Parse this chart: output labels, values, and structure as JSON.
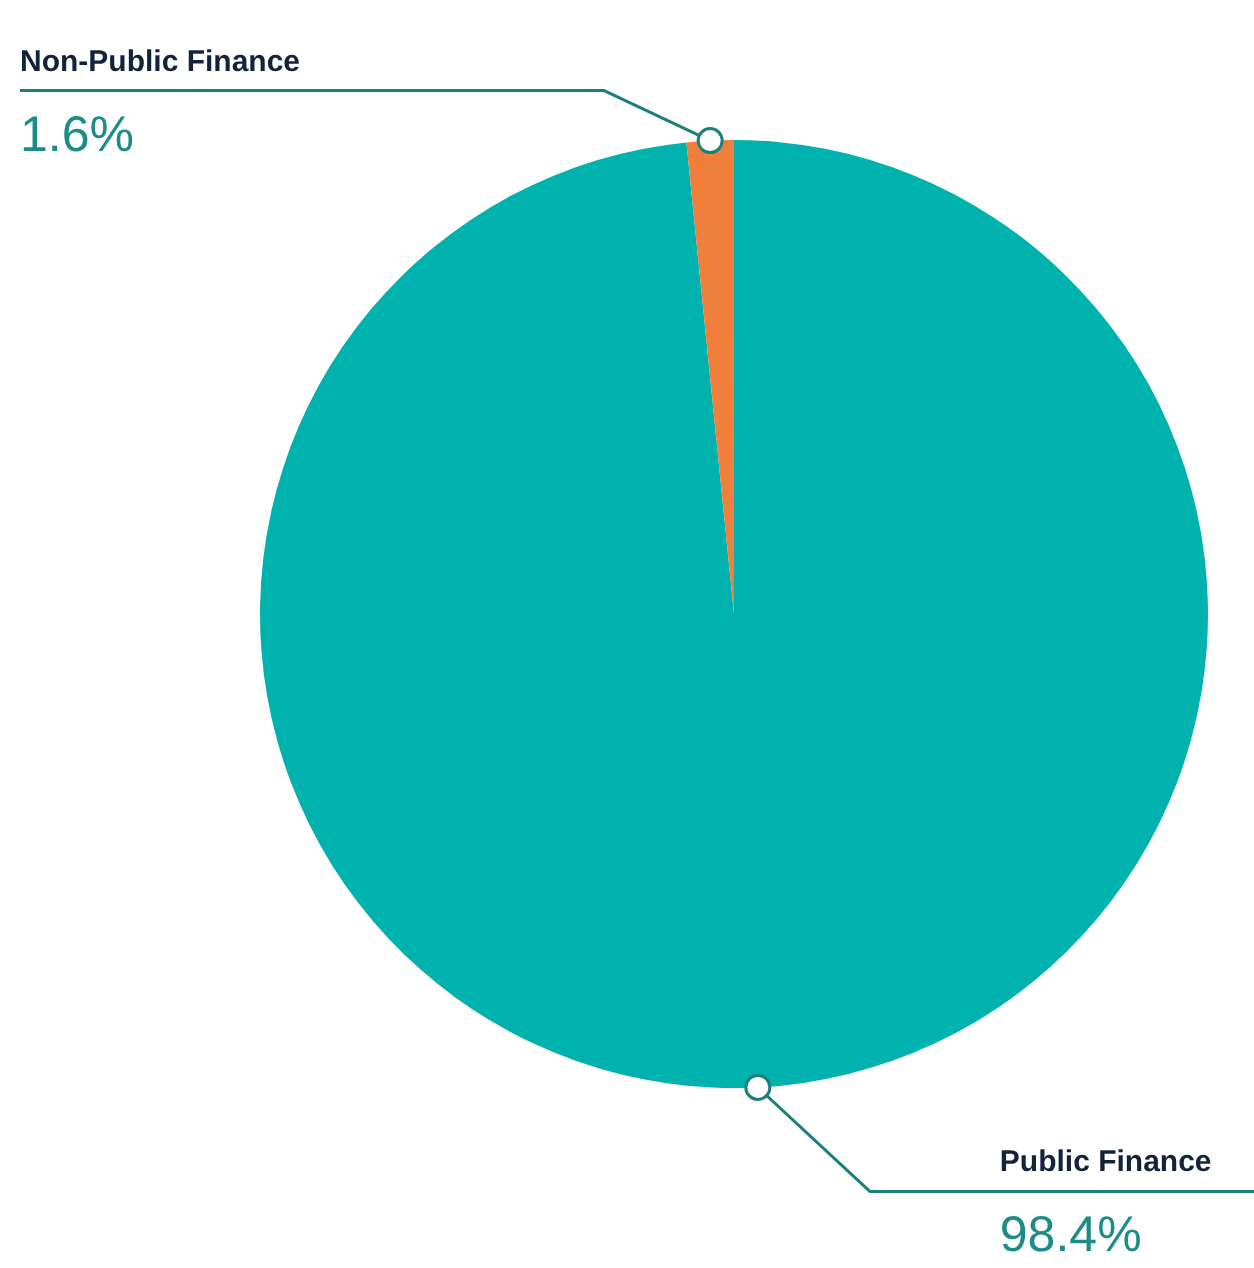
{
  "chart_data": {
    "type": "pie",
    "categories": [
      "Public Finance",
      "Non-Public Finance"
    ],
    "values": [
      98.4,
      1.6
    ],
    "colors": [
      "#00b2ad",
      "#f07f3c"
    ],
    "value_labels": [
      "98.4%",
      "1.6%"
    ],
    "legend": false
  }
}
